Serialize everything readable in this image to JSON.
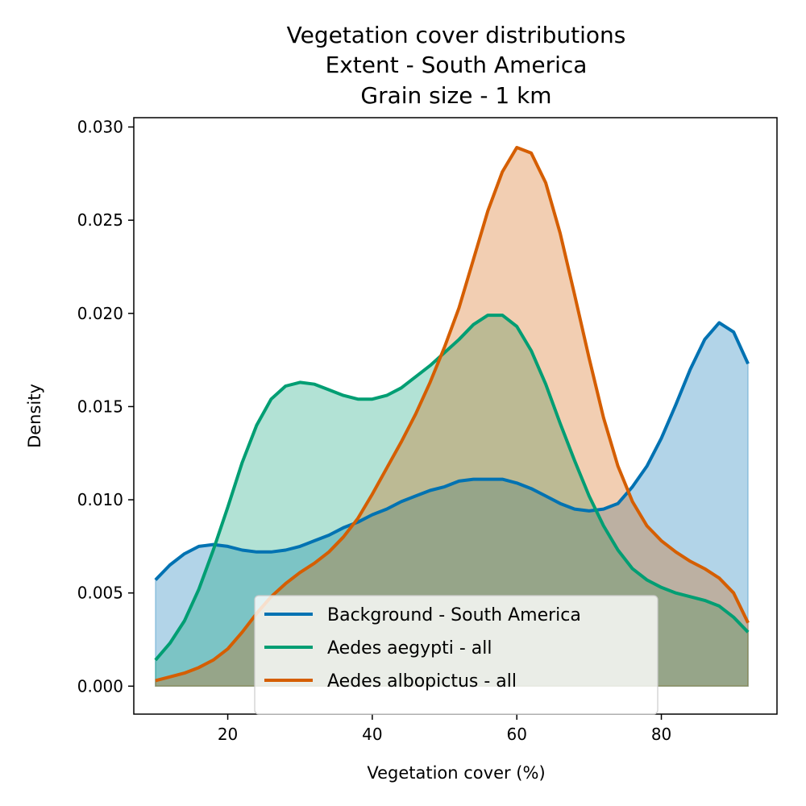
{
  "chart_data": {
    "type": "area",
    "title_lines": [
      "Vegetation cover distributions",
      "Extent - South America",
      "Grain size - 1 km"
    ],
    "xlabel": "Vegetation cover (%)",
    "ylabel": "Density",
    "xlim": [
      7,
      96
    ],
    "ylim": [
      -0.0015,
      0.0305
    ],
    "xticks": [
      20,
      40,
      60,
      80
    ],
    "xtick_labels": [
      "20",
      "40",
      "60",
      "80"
    ],
    "yticks": [
      0.0,
      0.005,
      0.01,
      0.015,
      0.02,
      0.025,
      0.03
    ],
    "ytick_labels": [
      "0.000",
      "0.005",
      "0.010",
      "0.015",
      "0.020",
      "0.025",
      "0.030"
    ],
    "grid": false,
    "legend_position": "bottom-center",
    "series": [
      {
        "name": "Background - South America",
        "color": "#0072b2",
        "x": [
          10,
          12,
          14,
          16,
          18,
          20,
          22,
          24,
          26,
          28,
          30,
          32,
          34,
          36,
          38,
          40,
          42,
          44,
          46,
          48,
          50,
          52,
          54,
          56,
          58,
          60,
          62,
          64,
          66,
          68,
          70,
          72,
          74,
          76,
          78,
          80,
          82,
          84,
          86,
          88,
          90,
          92
        ],
        "values": [
          0.0057,
          0.0065,
          0.0071,
          0.0075,
          0.0076,
          0.0075,
          0.0073,
          0.0072,
          0.0072,
          0.0073,
          0.0075,
          0.0078,
          0.0081,
          0.0085,
          0.0088,
          0.0092,
          0.0095,
          0.0099,
          0.0102,
          0.0105,
          0.0107,
          0.011,
          0.0111,
          0.0111,
          0.0111,
          0.0109,
          0.0106,
          0.0102,
          0.0098,
          0.0095,
          0.0094,
          0.0095,
          0.0098,
          0.0107,
          0.0118,
          0.0133,
          0.0151,
          0.017,
          0.0186,
          0.0195,
          0.019,
          0.0173
        ]
      },
      {
        "name": "Aedes aegypti - all",
        "color": "#009e73",
        "x": [
          10,
          12,
          14,
          16,
          18,
          20,
          22,
          24,
          26,
          28,
          30,
          32,
          34,
          36,
          38,
          40,
          42,
          44,
          46,
          48,
          50,
          52,
          54,
          56,
          58,
          60,
          62,
          64,
          66,
          68,
          70,
          72,
          74,
          76,
          78,
          80,
          82,
          84,
          86,
          88,
          90,
          92
        ],
        "values": [
          0.0014,
          0.0023,
          0.0035,
          0.0052,
          0.0073,
          0.0096,
          0.012,
          0.014,
          0.0154,
          0.0161,
          0.0163,
          0.0162,
          0.0159,
          0.0156,
          0.0154,
          0.0154,
          0.0156,
          0.016,
          0.0166,
          0.0172,
          0.0179,
          0.0186,
          0.0194,
          0.0199,
          0.0199,
          0.0193,
          0.018,
          0.0162,
          0.0141,
          0.0121,
          0.0102,
          0.0086,
          0.0073,
          0.0063,
          0.0057,
          0.0053,
          0.005,
          0.0048,
          0.0046,
          0.0043,
          0.0037,
          0.0029
        ]
      },
      {
        "name": "Aedes albopictus - all",
        "color": "#d55e00",
        "x": [
          10,
          12,
          14,
          16,
          18,
          20,
          22,
          24,
          26,
          28,
          30,
          32,
          34,
          36,
          38,
          40,
          42,
          44,
          46,
          48,
          50,
          52,
          54,
          56,
          58,
          60,
          62,
          64,
          66,
          68,
          70,
          72,
          74,
          76,
          78,
          80,
          82,
          84,
          86,
          88,
          90,
          92
        ],
        "values": [
          0.0003,
          0.0005,
          0.0007,
          0.001,
          0.0014,
          0.002,
          0.0029,
          0.0039,
          0.0048,
          0.0055,
          0.0061,
          0.0066,
          0.0072,
          0.008,
          0.009,
          0.0103,
          0.0117,
          0.0131,
          0.0146,
          0.0163,
          0.0182,
          0.0203,
          0.0229,
          0.0255,
          0.0276,
          0.0289,
          0.0286,
          0.027,
          0.0243,
          0.021,
          0.0176,
          0.0144,
          0.0118,
          0.0099,
          0.0086,
          0.0078,
          0.0072,
          0.0067,
          0.0063,
          0.0058,
          0.005,
          0.0034
        ]
      }
    ]
  }
}
